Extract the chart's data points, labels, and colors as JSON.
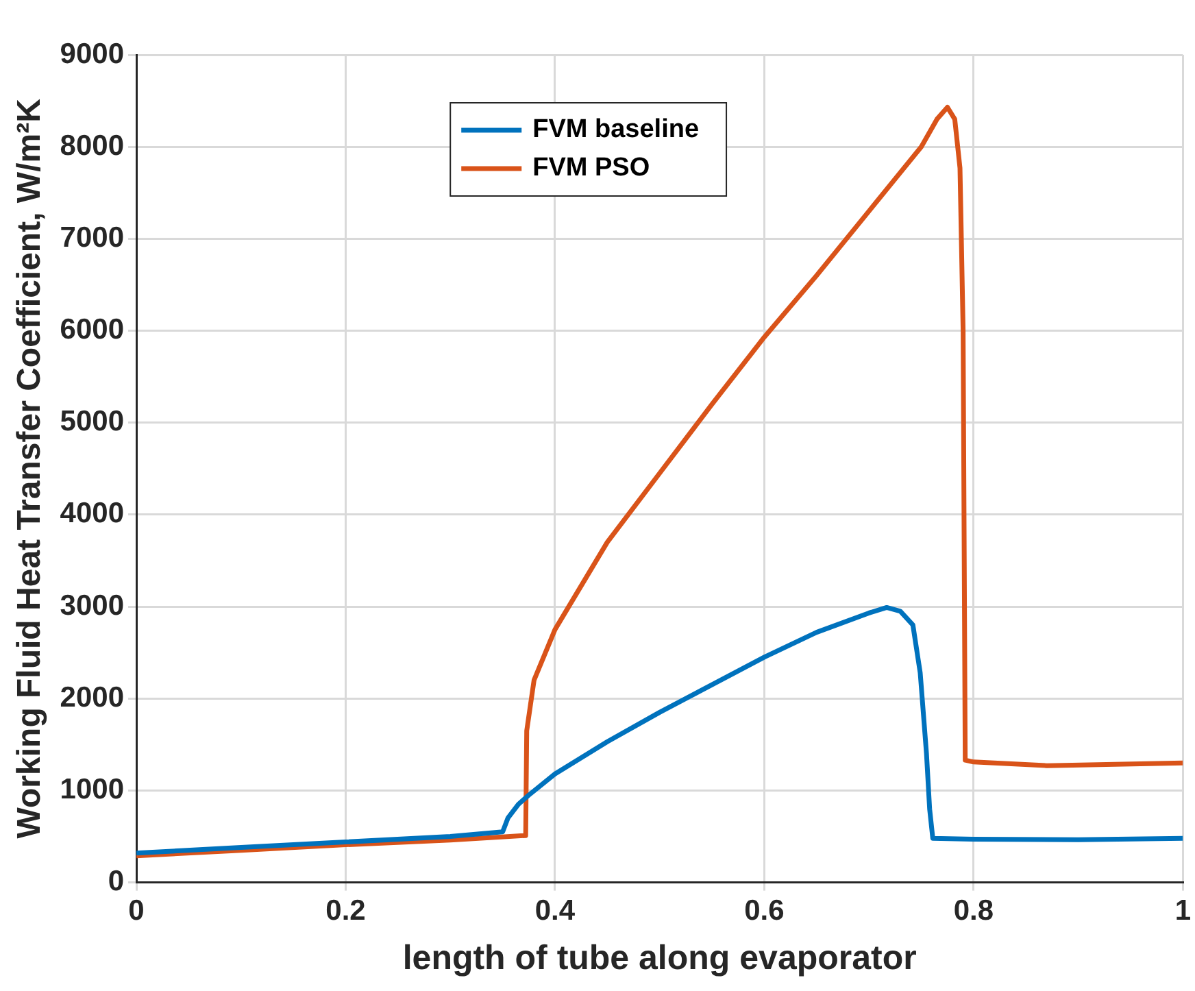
{
  "chart_data": {
    "type": "line",
    "xlabel": "length of tube along evaporator",
    "ylabel": "Working Fluid Heat Transfer Coefficient, W/m²K",
    "xlim": [
      0,
      1
    ],
    "xticks": [
      0,
      0.2,
      0.4,
      0.6,
      0.8,
      1
    ],
    "ylim": [
      0,
      9000
    ],
    "yticks": [
      0,
      1000,
      2000,
      3000,
      4000,
      5000,
      6000,
      7000,
      8000,
      9000
    ],
    "grid": true,
    "legend": "top",
    "marker": "none",
    "line_style": "solid",
    "series": [
      {
        "name": "FVM baseline",
        "color": "#0072bd",
        "x": [
          0,
          0.1,
          0.2,
          0.3,
          0.35,
          0.355,
          0.365,
          0.375,
          0.4,
          0.45,
          0.5,
          0.55,
          0.6,
          0.65,
          0.7,
          0.717,
          0.73,
          0.742,
          0.749,
          0.755,
          0.758,
          0.761,
          0.8,
          0.9,
          1
        ],
        "values": [
          320,
          380,
          440,
          500,
          550,
          700,
          850,
          950,
          1180,
          1530,
          1850,
          2150,
          2450,
          2720,
          2930,
          2990,
          2950,
          2800,
          2280,
          1400,
          800,
          480,
          470,
          465,
          480
        ]
      },
      {
        "name": "FVM PSO",
        "color": "#d95319",
        "x": [
          0,
          0.1,
          0.2,
          0.3,
          0.372,
          0.373,
          0.38,
          0.4,
          0.45,
          0.5,
          0.55,
          0.6,
          0.65,
          0.7,
          0.75,
          0.765,
          0.775,
          0.782,
          0.787,
          0.79,
          0.792,
          0.8,
          0.87,
          1
        ],
        "values": [
          290,
          350,
          410,
          460,
          510,
          1650,
          2200,
          2750,
          3700,
          4450,
          5200,
          5930,
          6600,
          7300,
          8000,
          8300,
          8430,
          8300,
          7770,
          6000,
          1330,
          1310,
          1270,
          1300
        ]
      }
    ]
  }
}
